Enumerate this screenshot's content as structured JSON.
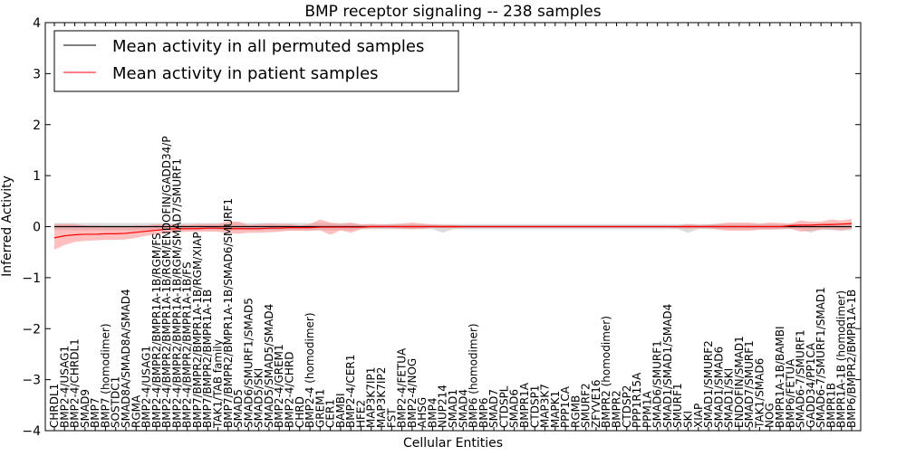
{
  "chart_data": {
    "type": "line",
    "title": "BMP receptor signaling -- 238 samples",
    "xlabel": "Cellular Entities",
    "ylabel": "Inferred Activity",
    "ylim": [
      -4,
      4
    ],
    "yticks": [
      -4,
      -3,
      -2,
      -1,
      0,
      1,
      2,
      3,
      4
    ],
    "grid": false,
    "legend_position": "top-left",
    "colors": {
      "permuted_line": "#000000",
      "permuted_band": "#bfbfbf",
      "patient_line": "#ff0000",
      "patient_band": "#ff8080"
    },
    "categories": [
      "CHRDL1",
      "BMP2-4/USAG1",
      "BMP2-4/CHRDL1",
      "SMAD9",
      "BMP7",
      "BMP7 (homodimer)",
      "SOSTDC1",
      "SMAD8A/SMAD8A/SMAD4",
      "RGMA",
      "BMP2-4/USAG1",
      "BMP2-4/BMPR2/BMPR1A-1B/RGM/FS",
      "BMP2-4/BMPR2/BMPR1A-1B/RGM/ENDOFIN/GADD34/P",
      "BMP2-4/BMPR2/BMPR1A-1B/RGM/SMAD7/SMURF1",
      "BMP2-4/BMPR2/BMPR1A-1B/FS",
      "BMP7/BMPR2/BMPR1A-1B/RGM/XIAP",
      "BMP7/BMPR2/BMPR1A-1B",
      "TAK1/TAB family",
      "BMP7/BMPR2/BMPR1A-1B/SMAD6/SMURF1",
      "SMAD5",
      "SMAD6/SMURF1/SMAD5",
      "SMAD5/SKI",
      "SMAD5/SMAD5/SMAD4",
      "BMP2-4/GREM1",
      "BMP2-4/CHRD",
      "CHRD",
      "BMP2-4 (homodimer)",
      "GREM1",
      "CER1",
      "BAMBI",
      "BMP2-4/CER1",
      "HFE2",
      "MAP3K7IP1",
      "MAP3K7IP2",
      "FST",
      "BMP2-4/FETUA",
      "BMP2-4/NOG",
      "AHSG",
      "BMP4",
      "NUP214",
      "SMAD1",
      "SMAD4",
      "BMP6 (homodimer)",
      "BMP6",
      "SMAD7",
      "CTDSPL",
      "SMAD6",
      "BMPR1A",
      "CTDSP1",
      "MAP3K7",
      "MAPK1",
      "PPP1CA",
      "RGMB",
      "SMURF2",
      "ZFYVE16",
      "BMPR2 (homodimer)",
      "BMPR2",
      "CTDSP2",
      "PPP1R15A",
      "PPM1A",
      "SMAD6/SMURF1",
      "SMAD1/SMAD1/SMAD4",
      "SMURF1",
      "SKI",
      "XIAP",
      "SMAD1/SMURF2",
      "SMAD1/SMAD6",
      "SMAD1/SKI",
      "ENDOFIN/SMAD1",
      "SMAD7/SMURF1",
      "TAK1/SMAD6",
      "NOG",
      "BMPR1A-1B/BAMBI",
      "BMP6/FETUA",
      "SMAD6-7/SMURF1",
      "GADD34/PP1CA",
      "SMAD6-7/SMURF1/SMAD1",
      "BMPR1B",
      "BMPR1A-1B (homodimer)",
      "BMP6/BMPR2/BMPR1A-1B"
    ],
    "series": [
      {
        "name": "Mean activity in all permuted samples",
        "values": [
          0,
          0,
          0,
          0,
          0,
          0,
          0,
          0,
          0,
          0,
          0,
          0,
          0,
          0,
          0,
          0,
          0,
          0,
          0,
          0,
          0,
          0,
          0,
          0,
          0,
          0,
          0,
          0,
          0,
          0,
          0,
          0,
          0,
          0,
          0,
          0,
          0,
          0,
          0,
          0,
          0,
          0,
          0,
          0,
          0,
          0,
          0,
          0,
          0,
          0,
          0,
          0,
          0,
          0,
          0,
          0,
          0,
          0,
          0,
          0,
          0,
          0,
          0,
          0,
          0,
          0,
          0,
          0,
          0,
          0,
          0,
          0,
          0,
          0,
          0,
          0,
          0,
          0,
          0
        ],
        "lower": [
          -0.07,
          -0.07,
          -0.07,
          -0.07,
          -0.07,
          -0.07,
          -0.07,
          -0.07,
          -0.07,
          -0.07,
          -0.07,
          -0.07,
          -0.07,
          -0.07,
          -0.07,
          -0.07,
          -0.07,
          -0.07,
          -0.07,
          -0.07,
          -0.07,
          -0.07,
          -0.07,
          -0.07,
          -0.07,
          -0.07,
          -0.07,
          -0.07,
          -0.07,
          -0.07,
          -0.05,
          -0.05,
          -0.05,
          -0.05,
          -0.05,
          -0.05,
          -0.05,
          -0.05,
          -0.12,
          -0.05,
          -0.05,
          -0.05,
          -0.05,
          -0.05,
          -0.05,
          -0.05,
          -0.05,
          -0.05,
          -0.05,
          -0.05,
          -0.05,
          -0.05,
          -0.05,
          -0.05,
          -0.05,
          -0.05,
          -0.05,
          -0.05,
          -0.05,
          -0.05,
          -0.05,
          -0.05,
          -0.12,
          -0.05,
          -0.05,
          -0.05,
          -0.05,
          -0.05,
          -0.05,
          -0.05,
          -0.05,
          -0.05,
          -0.05,
          -0.05,
          -0.12,
          -0.05,
          -0.07,
          -0.07,
          -0.07
        ],
        "upper": [
          0.07,
          0.07,
          0.07,
          0.07,
          0.07,
          0.07,
          0.07,
          0.07,
          0.07,
          0.07,
          0.07,
          0.07,
          0.07,
          0.07,
          0.07,
          0.07,
          0.07,
          0.07,
          0.07,
          0.07,
          0.07,
          0.07,
          0.07,
          0.07,
          0.07,
          0.07,
          0.07,
          0.07,
          0.07,
          0.07,
          0.05,
          0.05,
          0.05,
          0.05,
          0.05,
          0.05,
          0.05,
          0.05,
          0.05,
          0.05,
          0.05,
          0.05,
          0.05,
          0.05,
          0.05,
          0.05,
          0.05,
          0.05,
          0.05,
          0.05,
          0.05,
          0.05,
          0.05,
          0.05,
          0.05,
          0.05,
          0.05,
          0.05,
          0.05,
          0.05,
          0.05,
          0.05,
          0.05,
          0.05,
          0.05,
          0.05,
          0.05,
          0.05,
          0.05,
          0.05,
          0.05,
          0.05,
          0.05,
          0.05,
          0.05,
          0.05,
          0.07,
          0.07,
          0.07
        ]
      },
      {
        "name": "Mean activity in patient samples",
        "values": [
          -0.22,
          -0.18,
          -0.16,
          -0.15,
          -0.15,
          -0.14,
          -0.14,
          -0.13,
          -0.11,
          -0.09,
          -0.07,
          -0.05,
          -0.04,
          -0.04,
          -0.04,
          -0.03,
          -0.03,
          -0.04,
          -0.04,
          -0.04,
          -0.04,
          -0.03,
          -0.03,
          -0.02,
          -0.02,
          -0.02,
          -0.01,
          -0.01,
          -0.01,
          -0.01,
          -0.01,
          0,
          0,
          0,
          0,
          0,
          0,
          0,
          0,
          0,
          0,
          0,
          0,
          0,
          0,
          0,
          0,
          0,
          0,
          0,
          0,
          0,
          0,
          0,
          0,
          0,
          0,
          0,
          0,
          0,
          0,
          0,
          0,
          0,
          0,
          0,
          0,
          0,
          0,
          0,
          0,
          0,
          0.02,
          0.03,
          0.03,
          0.04,
          0.04,
          0.05,
          0.06
        ],
        "lower": [
          -0.45,
          -0.36,
          -0.3,
          -0.28,
          -0.27,
          -0.26,
          -0.26,
          -0.25,
          -0.22,
          -0.18,
          -0.15,
          -0.12,
          -0.11,
          -0.1,
          -0.1,
          -0.1,
          -0.1,
          -0.13,
          -0.14,
          -0.12,
          -0.12,
          -0.11,
          -0.1,
          -0.08,
          -0.08,
          -0.08,
          -0.07,
          -0.16,
          -0.07,
          -0.12,
          -0.05,
          -0.03,
          -0.03,
          -0.03,
          -0.04,
          -0.05,
          -0.04,
          -0.02,
          -0.03,
          -0.03,
          -0.02,
          -0.02,
          -0.02,
          -0.02,
          -0.02,
          -0.02,
          -0.02,
          -0.02,
          -0.02,
          -0.02,
          -0.02,
          -0.02,
          -0.02,
          -0.02,
          -0.02,
          -0.02,
          -0.02,
          -0.02,
          -0.02,
          -0.02,
          -0.02,
          -0.03,
          -0.04,
          -0.03,
          -0.03,
          -0.06,
          -0.08,
          -0.08,
          -0.08,
          -0.06,
          -0.06,
          -0.05,
          -0.04,
          -0.1,
          -0.08,
          -0.06,
          -0.05,
          -0.08,
          -0.04
        ],
        "upper": [
          0.05,
          0.05,
          0.05,
          0.02,
          0.02,
          0.01,
          0.01,
          0.0,
          0.02,
          0.02,
          0.05,
          0.03,
          0.05,
          0.03,
          0.05,
          0.05,
          0.05,
          0.1,
          0.1,
          0.03,
          0.05,
          0.06,
          0.05,
          0.05,
          0.02,
          0.05,
          0.14,
          0.08,
          0.05,
          0.08,
          0.04,
          0.05,
          0.04,
          0.05,
          0.06,
          0.08,
          0.06,
          0.04,
          0.03,
          0.03,
          0.02,
          0.02,
          0.02,
          0.02,
          0.02,
          0.02,
          0.02,
          0.02,
          0.02,
          0.02,
          0.02,
          0.02,
          0.02,
          0.02,
          0.02,
          0.02,
          0.02,
          0.02,
          0.02,
          0.02,
          0.02,
          0.02,
          0.05,
          0.03,
          0.04,
          0.06,
          0.08,
          0.08,
          0.08,
          0.06,
          0.08,
          0.07,
          0.06,
          0.12,
          0.1,
          0.1,
          0.14,
          0.12,
          0.15
        ]
      }
    ]
  }
}
